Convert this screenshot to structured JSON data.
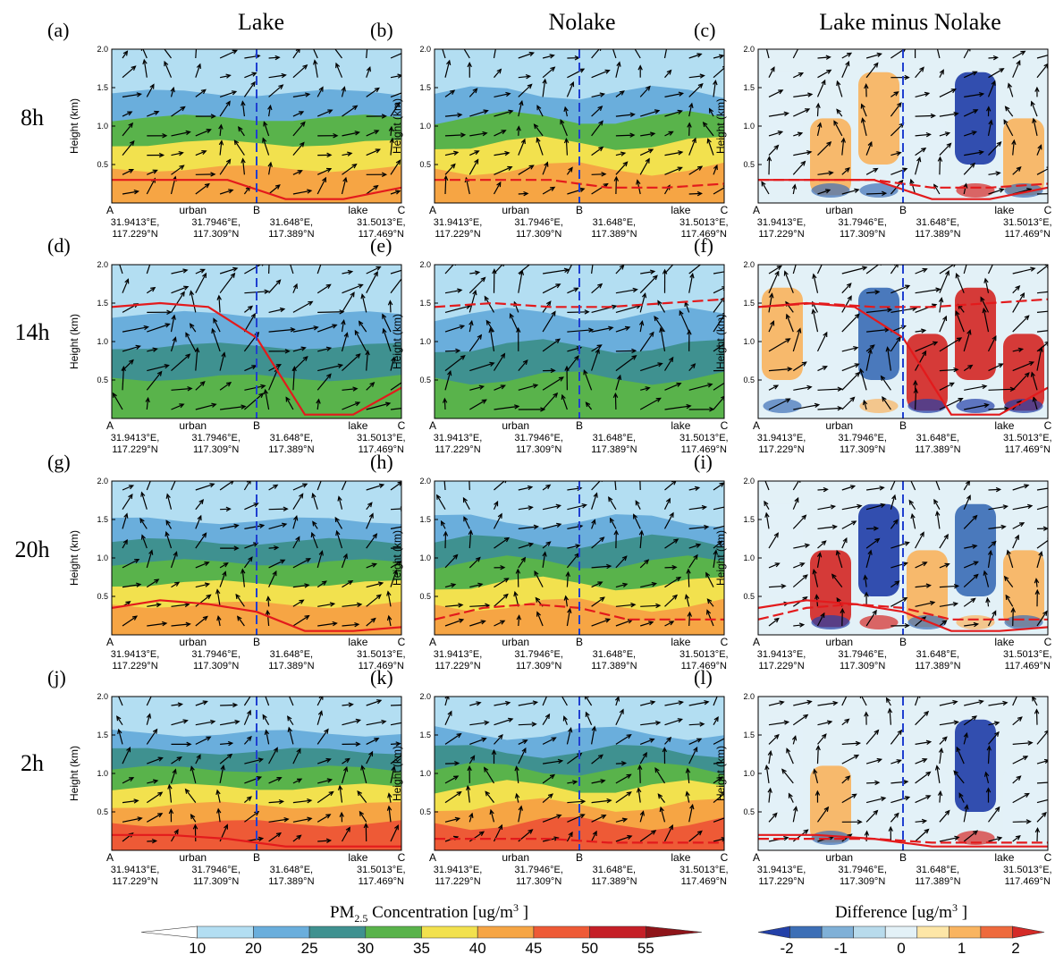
{
  "columns": [
    "Lake",
    "Nolake",
    "Lake minus Nolake"
  ],
  "rows": [
    "8h",
    "14h",
    "20h",
    "2h"
  ],
  "panel_letters": [
    "(a)",
    "(b)",
    "(c)",
    "(d)",
    "(e)",
    "(f)",
    "(g)",
    "(h)",
    "(i)",
    "(j)",
    "(k)",
    "(l)"
  ],
  "chart_data": {
    "type": "heatmap",
    "ylabel": "Height (km)",
    "yticks": [
      "0.5",
      "1.0",
      "1.5",
      "2.0"
    ],
    "y_tick_values": [
      0.5,
      1.0,
      1.5,
      2.0
    ],
    "ylim": [
      0,
      2.0
    ],
    "x_points": [
      {
        "letter": "A",
        "coord1": "31.9413°E,",
        "coord2": "117.229°N"
      },
      {
        "letter": "",
        "coord1": "31.7946°E,",
        "coord2": "117.309°N"
      },
      {
        "letter": "B",
        "coord1": "31.648°E,",
        "coord2": "117.389°N"
      },
      {
        "letter": "C",
        "coord1": "31.5013°E,",
        "coord2": "117.469°N"
      }
    ],
    "x_region_labels": [
      "urban",
      "lake"
    ],
    "colorbars": [
      {
        "title": "PM2.5 Concentration [ug/m3 ]",
        "title_main": "PM",
        "title_sub": "2.5",
        "title_mid": " Concentration [ug/m",
        "title_sup": "3",
        "title_end": " ]",
        "levels": [
          "10",
          "20",
          "25",
          "30",
          "35",
          "40",
          "45",
          "50",
          "55"
        ],
        "colors": [
          "#ffffff",
          "#b3def2",
          "#6aaedc",
          "#3f9190",
          "#59b34b",
          "#f2e14e",
          "#f6a544",
          "#ee5a36",
          "#c51f27",
          "#8e1419"
        ]
      },
      {
        "title": "Difference [ug/m3 ]",
        "title_main": "Difference [ug/m",
        "title_sup": "3",
        "title_end": " ]",
        "levels": [
          "-2",
          "-1",
          "0",
          "1",
          "2"
        ],
        "colors": [
          "#2340a8",
          "#3d6fb6",
          "#7fb0d7",
          "#b8dbec",
          "#e3f1f7",
          "#fde6a7",
          "#f9b460",
          "#ee6a3d",
          "#d42a27"
        ]
      }
    ],
    "pm_concentration_colors": [
      "#b3def2",
      "#6aaedc",
      "#3f9190",
      "#59b34b",
      "#f2e14e",
      "#f6a544",
      "#ee5a36",
      "#c51f27",
      "#8e1419"
    ],
    "pbl_height_km": {
      "8h": {
        "lake": [
          0.3,
          0.3,
          0.3,
          0.05,
          0.05,
          0.2
        ],
        "nolake": [
          0.3,
          0.3,
          0.3,
          0.2,
          0.2,
          0.25
        ]
      },
      "14h": {
        "lake": [
          1.45,
          1.5,
          1.45,
          1.05,
          0.05,
          0.05,
          0.4
        ],
        "nolake": [
          1.45,
          1.5,
          1.45,
          1.45,
          1.5,
          1.55
        ]
      },
      "20h": {
        "lake": [
          0.35,
          0.45,
          0.4,
          0.3,
          0.05,
          0.05,
          0.1
        ],
        "nolake": [
          0.2,
          0.35,
          0.4,
          0.35,
          0.2,
          0.2,
          0.2
        ]
      },
      "2h": {
        "lake": [
          0.2,
          0.2,
          0.15,
          0.05,
          0.05,
          0.05
        ],
        "nolake": [
          0.15,
          0.15,
          0.15,
          0.1,
          0.1,
          0.1
        ]
      }
    },
    "lake_column_layers": {
      "8h": [
        45,
        40,
        35,
        25,
        20
      ],
      "14h": [
        35,
        30,
        25,
        20
      ],
      "20h": [
        45,
        40,
        35,
        30,
        25,
        20
      ],
      "2h": [
        50,
        45,
        40,
        35,
        30,
        25,
        20
      ]
    },
    "lake_minus_nolake_regions": {
      "8h": [
        0,
        1,
        1,
        0,
        -2,
        1
      ],
      "14h": [
        1,
        0,
        -1,
        2,
        2,
        2
      ],
      "20h": [
        0,
        2,
        -2,
        1,
        -1,
        1
      ],
      "2h": [
        0,
        1,
        0,
        0,
        -2,
        0
      ]
    }
  }
}
